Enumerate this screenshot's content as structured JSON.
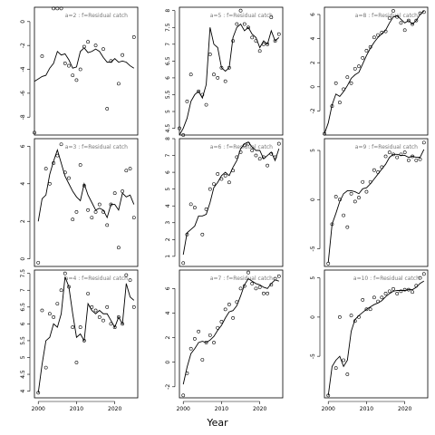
{
  "chart_data": {
    "type": "line",
    "xlabel": "Year",
    "panels": [
      {
        "title": "a=2  :  f=Residual catch",
        "x": [
          1999,
          2000,
          2001,
          2002,
          2003,
          2004,
          2005,
          2006,
          2007,
          2008,
          2009,
          2010,
          2011,
          2012,
          2013,
          2014,
          2015,
          2016,
          2017,
          2018,
          2019,
          2020,
          2021,
          2022,
          2023,
          2024,
          2025
        ],
        "points": [
          -9.3,
          null,
          -2.9,
          null,
          null,
          1.1,
          1.1,
          1.1,
          -3.5,
          -3.7,
          -4.5,
          -4.9,
          -4.0,
          -2.1,
          -1.7,
          null,
          -2.0,
          null,
          -2.3,
          -7.3,
          -3.3,
          null,
          -5.2,
          -2.8,
          null,
          null,
          -1.3
        ],
        "fit": [
          -5.0,
          -4.8,
          -4.6,
          -4.5,
          -3.9,
          -3.5,
          -2.5,
          -2.8,
          -2.7,
          -3.2,
          -3.9,
          -3.8,
          -2.5,
          -2.2,
          -2.6,
          -2.5,
          -2.3,
          -2.5,
          -3.0,
          -3.4,
          -3.4,
          -3.1,
          -3.4,
          -3.3,
          -3.4,
          -3.7,
          -3.9
        ],
        "xlim": [
          1999,
          2026
        ],
        "ylim": [
          -9.5,
          1.2
        ],
        "xticks": [],
        "yticks": [
          -8,
          -6,
          -4,
          -2,
          0
        ]
      },
      {
        "title": "a=5  :  f=Residual catch",
        "x": [
          1999,
          2000,
          2001,
          2002,
          2003,
          2004,
          2005,
          2006,
          2007,
          2008,
          2009,
          2010,
          2011,
          2012,
          2013,
          2014,
          2015,
          2016,
          2017,
          2018,
          2019,
          2020,
          2021,
          2022,
          2023,
          2024,
          2025
        ],
        "points": [
          4.5,
          4.3,
          5.3,
          6.1,
          null,
          5.6,
          5.5,
          5.2,
          6.7,
          6.1,
          6.0,
          6.3,
          5.9,
          6.3,
          7.1,
          7.6,
          8.0,
          7.6,
          7.5,
          7.2,
          7.1,
          6.8,
          7.0,
          7.0,
          7.8,
          7.1,
          7.3
        ],
        "fit": [
          4.3,
          4.5,
          4.8,
          5.3,
          5.5,
          5.6,
          5.4,
          5.8,
          7.5,
          7.0,
          6.9,
          6.3,
          6.2,
          6.3,
          7.2,
          7.5,
          7.6,
          7.4,
          7.5,
          7.3,
          7.2,
          6.9,
          7.1,
          7.0,
          7.4,
          7.1,
          7.2
        ],
        "xlim": [
          1999,
          2026
        ],
        "ylim": [
          4.3,
          8.1
        ],
        "xticks": [],
        "yticks": [
          4.5,
          5.0,
          5.5,
          6.0,
          6.5,
          7.0,
          7.5,
          8.0
        ]
      },
      {
        "title": "a=8  :  f=Residual catch",
        "x": [
          1999,
          2000,
          2001,
          2002,
          2003,
          2004,
          2005,
          2006,
          2007,
          2008,
          2009,
          2010,
          2011,
          2012,
          2013,
          2014,
          2015,
          2016,
          2017,
          2018,
          2019,
          2020,
          2021,
          2022,
          2023,
          2024,
          2025
        ],
        "points": [
          -3.9,
          null,
          -1.6,
          0.3,
          -1.3,
          -0.2,
          0.8,
          0.3,
          1.5,
          1.7,
          2.4,
          3.0,
          3.3,
          4.1,
          4.3,
          4.5,
          4.6,
          5.7,
          6.3,
          5.8,
          5.3,
          4.7,
          5.5,
          5.2,
          5.5,
          6.1,
          6.2
        ],
        "fit": [
          -3.9,
          -3.0,
          -1.5,
          -0.6,
          -0.8,
          -0.4,
          0.1,
          0.7,
          1.0,
          1.2,
          1.9,
          2.6,
          3.2,
          3.7,
          4.1,
          4.4,
          4.7,
          5.3,
          5.8,
          5.9,
          5.6,
          5.3,
          5.5,
          5.2,
          5.5,
          6.0,
          6.3
        ],
        "xlim": [
          1999,
          2026
        ],
        "ylim": [
          -4.0,
          6.6
        ],
        "xticks": [],
        "yticks": [
          -2,
          0,
          2,
          4,
          6
        ]
      },
      {
        "title": "a=3  :  f=Residual catch",
        "x": [
          1999,
          2000,
          2001,
          2002,
          2003,
          2004,
          2005,
          2006,
          2007,
          2008,
          2009,
          2010,
          2011,
          2012,
          2013,
          2014,
          2015,
          2016,
          2017,
          2018,
          2019,
          2020,
          2021,
          2022,
          2023,
          2024,
          2025
        ],
        "points": [
          null,
          -0.2,
          null,
          4.8,
          4.0,
          5.1,
          5.5,
          6.1,
          4.6,
          4.3,
          2.1,
          2.5,
          5.0,
          3.9,
          2.6,
          2.2,
          2.5,
          2.9,
          2.5,
          1.8,
          2.9,
          3.5,
          0.6,
          3.6,
          4.7,
          4.8,
          2.2
        ],
        "fit": [
          null,
          2.0,
          3.2,
          3.4,
          4.5,
          5.2,
          5.8,
          5.1,
          4.4,
          4.0,
          3.6,
          3.3,
          3.1,
          4.0,
          3.4,
          3.0,
          2.6,
          2.7,
          2.6,
          2.2,
          2.9,
          2.9,
          2.6,
          3.5,
          3.3,
          3.4,
          2.9
        ],
        "xlim": [
          1999,
          2026
        ],
        "ylim": [
          -0.4,
          6.4
        ],
        "xticks": [],
        "yticks": [
          0,
          2,
          4,
          6
        ]
      },
      {
        "title": "a=6  :  f=Residual catch",
        "x": [
          1999,
          2000,
          2001,
          2002,
          2003,
          2004,
          2005,
          2006,
          2007,
          2008,
          2009,
          2010,
          2011,
          2012,
          2013,
          2014,
          2015,
          2016,
          2017,
          2018,
          2019,
          2020,
          2021,
          2022,
          2023,
          2024,
          2025
        ],
        "points": [
          null,
          0.6,
          2.3,
          4.1,
          3.9,
          null,
          2.3,
          3.8,
          5.0,
          5.3,
          5.9,
          5.6,
          5.8,
          5.4,
          6.1,
          6.9,
          7.2,
          7.6,
          7.7,
          7.3,
          7.0,
          6.8,
          6.9,
          6.4,
          7.1,
          6.9,
          7.7
        ],
        "fit": [
          null,
          1.1,
          2.4,
          2.6,
          2.8,
          3.4,
          3.4,
          3.5,
          4.2,
          5.1,
          5.4,
          5.8,
          6.0,
          5.8,
          6.3,
          6.7,
          7.4,
          7.7,
          7.8,
          7.5,
          7.3,
          7.3,
          6.8,
          7.0,
          7.2,
          6.7,
          7.4
        ],
        "xlim": [
          1999,
          2026
        ],
        "ylim": [
          0.4,
          8.0
        ],
        "xticks": [],
        "yticks": [
          1,
          2,
          3,
          4,
          5,
          6,
          7,
          8
        ]
      },
      {
        "title": "a=9  :  f=Residual catch",
        "x": [
          1999,
          2000,
          2001,
          2002,
          2003,
          2004,
          2005,
          2006,
          2007,
          2008,
          2009,
          2010,
          2011,
          2012,
          2013,
          2014,
          2015,
          2016,
          2017,
          2018,
          2019,
          2020,
          2021,
          2022,
          2023,
          2024,
          2025
        ],
        "points": [
          null,
          -6.5,
          -2.5,
          0.3,
          0.0,
          -1.6,
          -2.8,
          0.6,
          -0.2,
          0.2,
          1.8,
          0.8,
          1.8,
          3.0,
          2.8,
          3.3,
          4.4,
          4.8,
          4.6,
          4.3,
          4.6,
          4.8,
          4.0,
          4.4,
          4.0,
          4.1,
          5.8
        ],
        "fit": [
          null,
          -6.4,
          -2.5,
          -1.4,
          -0.2,
          0.6,
          0.9,
          0.9,
          0.8,
          0.6,
          1.1,
          1.2,
          1.6,
          2.1,
          2.6,
          3.1,
          3.6,
          4.3,
          4.6,
          4.6,
          4.5,
          4.5,
          4.3,
          4.4,
          4.3,
          4.3,
          5.1
        ],
        "xlim": [
          1999,
          2026
        ],
        "ylim": [
          -6.8,
          6.2
        ],
        "xticks": [],
        "yticks": [
          -5,
          0,
          5
        ]
      },
      {
        "title": "a=4  :  f=Residual catch",
        "x": [
          1999,
          2000,
          2001,
          2002,
          2003,
          2004,
          2005,
          2006,
          2007,
          2008,
          2009,
          2010,
          2011,
          2012,
          2013,
          2014,
          2015,
          2016,
          2017,
          2018,
          2019,
          2020,
          2021,
          2022,
          2023,
          2024,
          2025
        ],
        "points": [
          null,
          3.95,
          6.4,
          4.7,
          6.3,
          6.2,
          6.6,
          7.0,
          7.5,
          7.1,
          5.9,
          4.85,
          5.9,
          5.5,
          6.9,
          6.5,
          6.4,
          6.2,
          6.1,
          6.5,
          6.0,
          5.9,
          6.2,
          6.0,
          7.45,
          7.3,
          6.5
        ],
        "fit": [
          null,
          3.95,
          4.8,
          5.5,
          5.6,
          6.0,
          5.9,
          6.3,
          7.4,
          7.1,
          6.3,
          5.6,
          5.7,
          5.5,
          6.6,
          6.4,
          6.3,
          6.4,
          6.3,
          6.3,
          6.1,
          5.9,
          6.2,
          6.0,
          7.2,
          6.8,
          6.7
        ],
        "xlim": [
          1999,
          2026
        ],
        "ylim": [
          3.8,
          7.6
        ],
        "xticks": [
          2000,
          2010,
          2020
        ],
        "yticks": [
          4.0,
          4.5,
          5.0,
          5.5,
          6.0,
          6.5,
          7.0,
          7.5
        ]
      },
      {
        "title": "a=7  :  f=Residual catch",
        "x": [
          1999,
          2000,
          2001,
          2002,
          2003,
          2004,
          2005,
          2006,
          2007,
          2008,
          2009,
          2010,
          2011,
          2012,
          2013,
          2014,
          2015,
          2016,
          2017,
          2018,
          2019,
          2020,
          2021,
          2022,
          2023,
          2024,
          2025
        ],
        "points": [
          null,
          -2.7,
          -0.9,
          1.1,
          1.9,
          2.5,
          0.2,
          1.6,
          2.2,
          1.6,
          2.8,
          3.3,
          4.3,
          4.7,
          3.6,
          4.9,
          6.0,
          6.2,
          7.3,
          6.4,
          6.0,
          6.1,
          5.6,
          5.6,
          6.3,
          6.8,
          7.0
        ],
        "fit": [
          null,
          -1.8,
          -0.4,
          0.7,
          1.1,
          1.6,
          1.7,
          1.6,
          1.8,
          2.1,
          2.6,
          3.0,
          3.6,
          4.1,
          4.2,
          4.6,
          5.4,
          6.3,
          6.8,
          6.6,
          6.4,
          6.3,
          6.1,
          6.0,
          6.4,
          6.7,
          6.6
        ],
        "xlim": [
          1999,
          2026
        ],
        "ylim": [
          -2.9,
          7.5
        ],
        "xticks": [
          2000,
          2010,
          2020
        ],
        "yticks": [
          -2,
          0,
          2,
          4,
          6
        ]
      },
      {
        "title": "a=10  :  f=Residual catch",
        "x": [
          1999,
          2000,
          2001,
          2002,
          2003,
          2004,
          2005,
          2006,
          2007,
          2008,
          2009,
          2010,
          2011,
          2012,
          2013,
          2014,
          2015,
          2016,
          2017,
          2018,
          2019,
          2020,
          2021,
          2022,
          2023,
          2024,
          2025
        ],
        "points": [
          null,
          -10.0,
          null,
          -6.5,
          0.0,
          -5.5,
          -7.3,
          0.2,
          -0.5,
          0.0,
          2.2,
          1.0,
          1.0,
          2.5,
          2.0,
          2.5,
          3.0,
          3.3,
          3.6,
          3.0,
          3.3,
          3.5,
          3.5,
          3.2,
          4.0,
          5.0,
          5.5
        ],
        "fit": [
          null,
          -10.0,
          -6.3,
          -5.5,
          -5.0,
          -6.3,
          -5.5,
          -1.8,
          -0.3,
          0.2,
          0.6,
          1.0,
          1.3,
          1.6,
          1.8,
          2.1,
          2.6,
          3.0,
          3.3,
          3.4,
          3.4,
          3.4,
          3.5,
          3.5,
          3.8,
          4.3,
          4.6
        ],
        "xlim": [
          1999,
          2026
        ],
        "ylim": [
          -10.3,
          6.0
        ],
        "xticks": [
          2000,
          2010,
          2020
        ],
        "yticks": [
          -5,
          0,
          5
        ]
      }
    ]
  }
}
